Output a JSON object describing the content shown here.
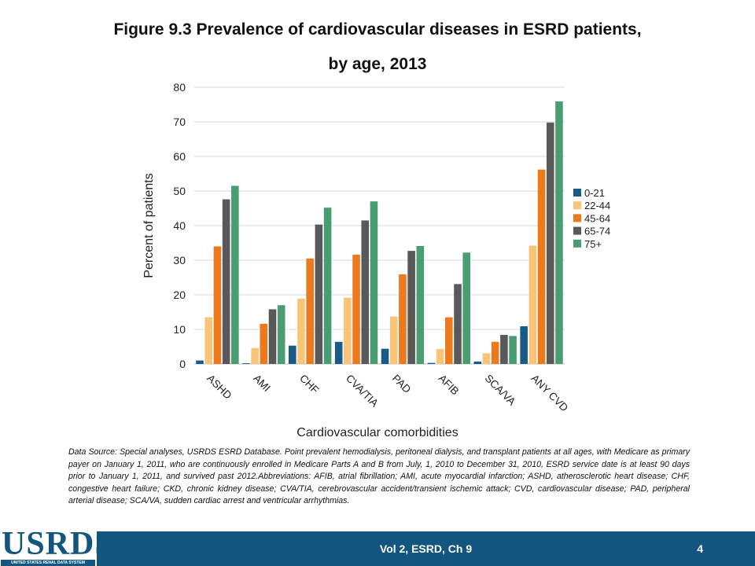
{
  "slide": {
    "title_line1": "Figure 9.3 Prevalence of cardiovascular diseases in ESRD patients,",
    "title_line2": "by age, 2013",
    "source_note": "Data Source: Special analyses, USRDS ESRD Database. Point prevalent hemodialysis, peritoneal dialysis, and transplant patients at all ages, with Medicare as primary payer on January 1, 2011, who are continuously enrolled in Medicare Parts A and B from July, 1, 2010 to December 31, 2010, ESRD service date is at least 90 days prior to January 1, 2011, and survived past 2012.Abbreviations: AFIB, atrial fibrillation; AMI, acute myocardial infarction; ASHD, atherosclerotic heart disease; CHF, congestive heart failure; CKD, chronic kidney disease; CVA/TIA, cerebrovascular accident/transient ischemic attack; CVD, cardiovascular disease; PAD, peripheral arterial disease; SCA/VA, sudden cardiac arrest and ventricular arrhythmias.",
    "footer": "Vol 2, ESRD, Ch 9",
    "page_number": "4",
    "logo_text": "USRDS",
    "logo_subtext": "UNITED STATES RENAL DATA SYSTEM",
    "footer_color": "#12557f"
  },
  "chart_data": {
    "type": "bar",
    "title": "",
    "xlabel": "Cardiovascular comorbidities",
    "ylabel": "Percent of patients",
    "ylim": [
      0,
      80
    ],
    "yticks": [
      0,
      10,
      20,
      30,
      40,
      50,
      60,
      70,
      80
    ],
    "grid": true,
    "legend_position": "right",
    "categories": [
      "ASHD",
      "AMI",
      "CHF",
      "CVA/TIA",
      "PAD",
      "AFIB",
      "SCA/VA",
      "ANY CVD"
    ],
    "series": [
      {
        "name": "0-21",
        "color": "#175b86",
        "values": [
          1.0,
          0.2,
          5.3,
          6.4,
          4.4,
          0.3,
          0.7,
          10.9
        ]
      },
      {
        "name": "22-44",
        "color": "#f9c477",
        "values": [
          13.5,
          4.6,
          18.9,
          19.2,
          13.7,
          4.3,
          3.1,
          34.2
        ]
      },
      {
        "name": "45-64",
        "color": "#ec7a1d",
        "values": [
          34.0,
          11.6,
          30.5,
          31.6,
          25.9,
          13.5,
          6.4,
          56.2
        ]
      },
      {
        "name": "65-74",
        "color": "#595959",
        "values": [
          47.6,
          15.8,
          40.3,
          41.5,
          32.7,
          23.1,
          8.4,
          69.8
        ]
      },
      {
        "name": "75+",
        "color": "#4a9d72",
        "values": [
          51.5,
          17.0,
          45.2,
          47.0,
          34.1,
          32.2,
          8.1,
          75.9
        ]
      }
    ]
  }
}
